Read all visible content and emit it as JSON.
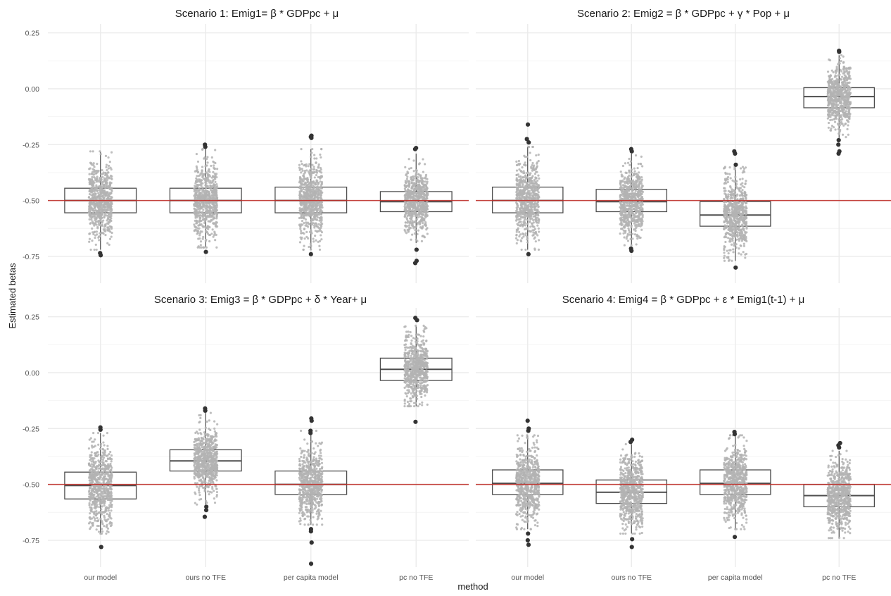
{
  "figure": {
    "ylabel": "Estimated betas",
    "xlabel": "method",
    "true_value": -0.5,
    "colors": {
      "points": "#b3b3b3",
      "box": "#4d4d4d",
      "outlier": "#333333",
      "reference_line": "#c0302a",
      "gridline": "#ebebeb"
    }
  },
  "chart_data": [
    {
      "type": "boxplot",
      "title": "Scenario 1: Emig1= β * GDPpc + μ",
      "categories": [
        "our model",
        "ours no TFE",
        "per capita model",
        "pc no TFE"
      ],
      "ylim": [
        -0.87,
        0.29
      ],
      "yticks": [
        0.25,
        0.0,
        -0.25,
        -0.5,
        -0.75
      ],
      "ytick_labels": [
        "0.25",
        "0.00",
        "-0.25",
        "-0.50",
        "-0.75"
      ],
      "reference_line": -0.5,
      "boxes": [
        {
          "q1": -0.555,
          "median": -0.5,
          "q3": -0.445,
          "whisker_low": -0.72,
          "whisker_high": -0.28,
          "outliers": [
            -0.735,
            -0.745
          ]
        },
        {
          "q1": -0.555,
          "median": -0.5,
          "q3": -0.445,
          "whisker_low": -0.71,
          "whisker_high": -0.27,
          "outliers": [
            -0.25,
            -0.26,
            -0.73
          ]
        },
        {
          "q1": -0.555,
          "median": -0.5,
          "q3": -0.44,
          "whisker_low": -0.72,
          "whisker_high": -0.27,
          "outliers": [
            -0.21,
            -0.215,
            -0.22,
            -0.74
          ]
        },
        {
          "q1": -0.55,
          "median": -0.505,
          "q3": -0.46,
          "whisker_low": -0.69,
          "whisker_high": -0.29,
          "outliers": [
            -0.265,
            -0.27,
            -0.72,
            -0.77,
            -0.78
          ]
        }
      ]
    },
    {
      "type": "boxplot",
      "title": "Scenario 2: Emig2 = β * GDPpc + γ * Pop + μ",
      "categories": [
        "our model",
        "ours no TFE",
        "per capita model",
        "pc no TFE"
      ],
      "ylim": [
        -0.87,
        0.29
      ],
      "yticks": [
        0.25,
        0.0,
        -0.25,
        -0.5,
        -0.75
      ],
      "ytick_labels": [
        "0.25",
        "0.00",
        "-0.25",
        "-0.50",
        "-0.75"
      ],
      "reference_line": -0.5,
      "boxes": [
        {
          "q1": -0.555,
          "median": -0.5,
          "q3": -0.44,
          "whisker_low": -0.72,
          "whisker_high": -0.26,
          "outliers": [
            -0.16,
            -0.225,
            -0.24,
            -0.74
          ]
        },
        {
          "q1": -0.55,
          "median": -0.505,
          "q3": -0.45,
          "whisker_low": -0.7,
          "whisker_high": -0.29,
          "outliers": [
            -0.27,
            -0.28,
            -0.715,
            -0.725
          ]
        },
        {
          "q1": -0.615,
          "median": -0.565,
          "q3": -0.505,
          "whisker_low": -0.77,
          "whisker_high": -0.35,
          "outliers": [
            -0.28,
            -0.29,
            -0.34,
            -0.8
          ]
        },
        {
          "q1": -0.085,
          "median": -0.035,
          "q3": 0.005,
          "whisker_low": -0.22,
          "whisker_high": 0.15,
          "outliers": [
            0.165,
            0.17,
            -0.23,
            -0.25,
            -0.28,
            -0.29
          ]
        }
      ]
    },
    {
      "type": "boxplot",
      "title": "Scenario 3: Emig3 = β * GDPpc + δ * Year+ μ",
      "categories": [
        "our model",
        "ours no TFE",
        "per capita model",
        "pc no TFE"
      ],
      "ylim": [
        -0.87,
        0.29
      ],
      "yticks": [
        0.25,
        0.0,
        -0.25,
        -0.5,
        -0.75
      ],
      "ytick_labels": [
        "0.25",
        "0.00",
        "-0.25",
        "-0.50",
        "-0.75"
      ],
      "reference_line": -0.5,
      "boxes": [
        {
          "q1": -0.565,
          "median": -0.505,
          "q3": -0.445,
          "whisker_low": -0.72,
          "whisker_high": -0.27,
          "outliers": [
            -0.245,
            -0.255,
            -0.78
          ]
        },
        {
          "q1": -0.44,
          "median": -0.395,
          "q3": -0.345,
          "whisker_low": -0.59,
          "whisker_high": -0.18,
          "outliers": [
            -0.16,
            -0.17,
            -0.6,
            -0.615,
            -0.645
          ]
        },
        {
          "q1": -0.545,
          "median": -0.5,
          "q3": -0.44,
          "whisker_low": -0.68,
          "whisker_high": -0.26,
          "outliers": [
            -0.205,
            -0.215,
            -0.26,
            -0.27,
            -0.7,
            -0.71,
            -0.76,
            -0.855
          ]
        },
        {
          "q1": -0.035,
          "median": 0.015,
          "q3": 0.065,
          "whisker_low": -0.15,
          "whisker_high": 0.21,
          "outliers": [
            0.235,
            0.245,
            -0.22
          ]
        }
      ]
    },
    {
      "type": "boxplot",
      "title": "Scenario 4: Emig4 = β * GDPpc + ε * Emig1(t-1) + μ",
      "categories": [
        "our model",
        "ours no TFE",
        "per capita model",
        "pc no TFE"
      ],
      "ylim": [
        -0.87,
        0.29
      ],
      "yticks": [
        0.25,
        0.0,
        -0.25,
        -0.5,
        -0.75
      ],
      "ytick_labels": [
        "0.25",
        "0.00",
        "-0.25",
        "-0.50",
        "-0.75"
      ],
      "reference_line": -0.5,
      "boxes": [
        {
          "q1": -0.545,
          "median": -0.495,
          "q3": -0.435,
          "whisker_low": -0.7,
          "whisker_high": -0.28,
          "outliers": [
            -0.215,
            -0.25,
            -0.26,
            -0.72,
            -0.75,
            -0.77
          ]
        },
        {
          "q1": -0.585,
          "median": -0.535,
          "q3": -0.48,
          "whisker_low": -0.72,
          "whisker_high": -0.32,
          "outliers": [
            -0.3,
            -0.31,
            -0.745,
            -0.78
          ]
        },
        {
          "q1": -0.545,
          "median": -0.495,
          "q3": -0.435,
          "whisker_low": -0.7,
          "whisker_high": -0.28,
          "outliers": [
            -0.265,
            -0.275,
            -0.735
          ]
        },
        {
          "q1": -0.6,
          "median": -0.55,
          "q3": -0.5,
          "whisker_low": -0.74,
          "whisker_high": -0.35,
          "outliers": [
            -0.315,
            -0.325,
            -0.335
          ]
        }
      ]
    }
  ]
}
